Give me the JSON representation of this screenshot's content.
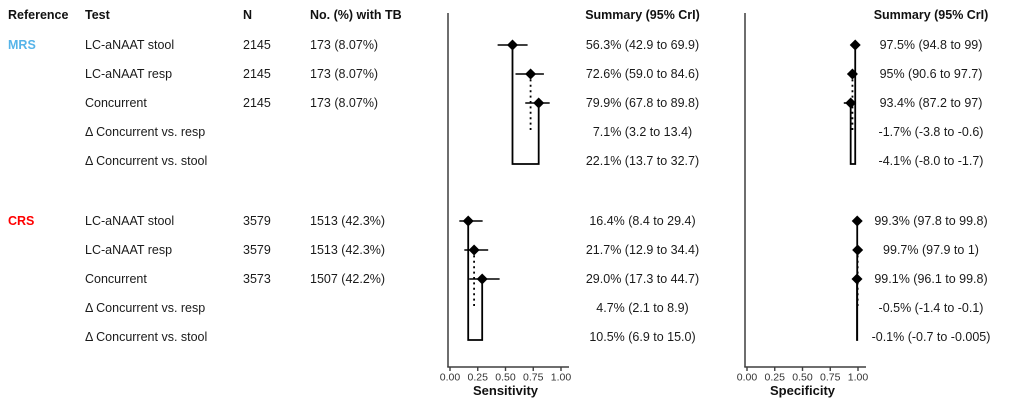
{
  "figure": {
    "background": "#ffffff",
    "ink": "#000000",
    "axis_color": "#3f3f3f",
    "headers": {
      "reference": "Reference",
      "test": "Test",
      "n": "N",
      "no_tb": "No. (%) with TB",
      "sens_summary": "Summary (95% CrI)",
      "spec_summary": "Summary (95% CrI)"
    }
  },
  "chart_data": {
    "type": "scatter",
    "variant": "forest-plot",
    "grid": false,
    "panels": [
      {
        "key": "sens",
        "xlabel": "Sensitivity",
        "summary_header": "Summary (95% CrI)",
        "xlim": [
          0,
          1
        ],
        "xticks": [
          0,
          0.25,
          0.5,
          0.75,
          1
        ],
        "xtick_labels": [
          "0.00",
          "0.25",
          "0.50",
          "0.75",
          "1.00"
        ]
      },
      {
        "key": "spec",
        "xlabel": "Specificity",
        "summary_header": "Summary (95% CrI)",
        "xlim": [
          0,
          1
        ],
        "xticks": [
          0,
          0.25,
          0.5,
          0.75,
          1
        ],
        "xtick_labels": [
          "0.00",
          "0.25",
          "0.50",
          "0.75",
          "1.00"
        ]
      }
    ],
    "groups": [
      {
        "reference": "MRS",
        "color": "#56b4e9",
        "rows": [
          {
            "test": "LC-aNAAT stool",
            "n": "2145",
            "no_tb": "173 (8.07%)",
            "sens": {
              "est": 0.563,
              "lo": 0.429,
              "hi": 0.699,
              "summary": "56.3% (42.9 to 69.9)"
            },
            "spec": {
              "est": 0.975,
              "lo": 0.948,
              "hi": 0.99,
              "summary": "97.5% (94.8 to 99)"
            }
          },
          {
            "test": "LC-aNAAT resp",
            "n": "2145",
            "no_tb": "173 (8.07%)",
            "sens": {
              "est": 0.726,
              "lo": 0.59,
              "hi": 0.846,
              "summary": "72.6% (59.0 to 84.6)"
            },
            "spec": {
              "est": 0.95,
              "lo": 0.906,
              "hi": 0.977,
              "summary": "95% (90.6 to 97.7)"
            }
          },
          {
            "test": "Concurrent",
            "n": "2145",
            "no_tb": "173 (8.07%)",
            "sens": {
              "est": 0.799,
              "lo": 0.678,
              "hi": 0.898,
              "summary": "79.9% (67.8 to 89.8)"
            },
            "spec": {
              "est": 0.934,
              "lo": 0.872,
              "hi": 0.97,
              "summary": "93.4% (87.2 to 97)"
            }
          },
          {
            "test": "Δ Concurrent vs. resp",
            "n": "",
            "no_tb": "",
            "sens": {
              "summary": "7.1% (3.2 to 13.4)"
            },
            "spec": {
              "summary": "-1.7% (-3.8 to -0.6)"
            }
          },
          {
            "test": "Δ Concurrent vs. stool",
            "n": "",
            "no_tb": "",
            "sens": {
              "summary": "22.1% (13.7 to 32.7)"
            },
            "spec": {
              "summary": "-4.1% (-8.0 to -1.7)"
            }
          }
        ]
      },
      {
        "reference": "CRS",
        "color": "#ff0000",
        "rows": [
          {
            "test": "LC-aNAAT stool",
            "n": "3579",
            "no_tb": "1513 (42.3%)",
            "sens": {
              "est": 0.164,
              "lo": 0.084,
              "hi": 0.294,
              "summary": "16.4% (8.4 to 29.4)"
            },
            "spec": {
              "est": 0.993,
              "lo": 0.978,
              "hi": 0.998,
              "summary": "99.3% (97.8 to 99.8)"
            }
          },
          {
            "test": "LC-aNAAT resp",
            "n": "3579",
            "no_tb": "1513 (42.3%)",
            "sens": {
              "est": 0.217,
              "lo": 0.129,
              "hi": 0.344,
              "summary": "21.7% (12.9 to 34.4)"
            },
            "spec": {
              "est": 0.997,
              "lo": 0.979,
              "hi": 1.0,
              "summary": "99.7% (97.9 to 1)"
            }
          },
          {
            "test": "Concurrent",
            "n": "3573",
            "no_tb": "1507 (42.2%)",
            "sens": {
              "est": 0.29,
              "lo": 0.173,
              "hi": 0.447,
              "summary": "29.0% (17.3 to 44.7)"
            },
            "spec": {
              "est": 0.991,
              "lo": 0.961,
              "hi": 0.998,
              "summary": "99.1% (96.1 to 99.8)"
            }
          },
          {
            "test": "Δ Concurrent vs. resp",
            "n": "",
            "no_tb": "",
            "sens": {
              "summary": "4.7% (2.1 to 8.9)"
            },
            "spec": {
              "summary": "-0.5% (-1.4 to -0.1)"
            }
          },
          {
            "test": "Δ Concurrent vs. stool",
            "n": "",
            "no_tb": "",
            "sens": {
              "summary": "10.5% (6.9 to 15.0)"
            },
            "spec": {
              "summary": "-0.1% (-0.7 to -0.005)"
            }
          }
        ]
      }
    ]
  }
}
